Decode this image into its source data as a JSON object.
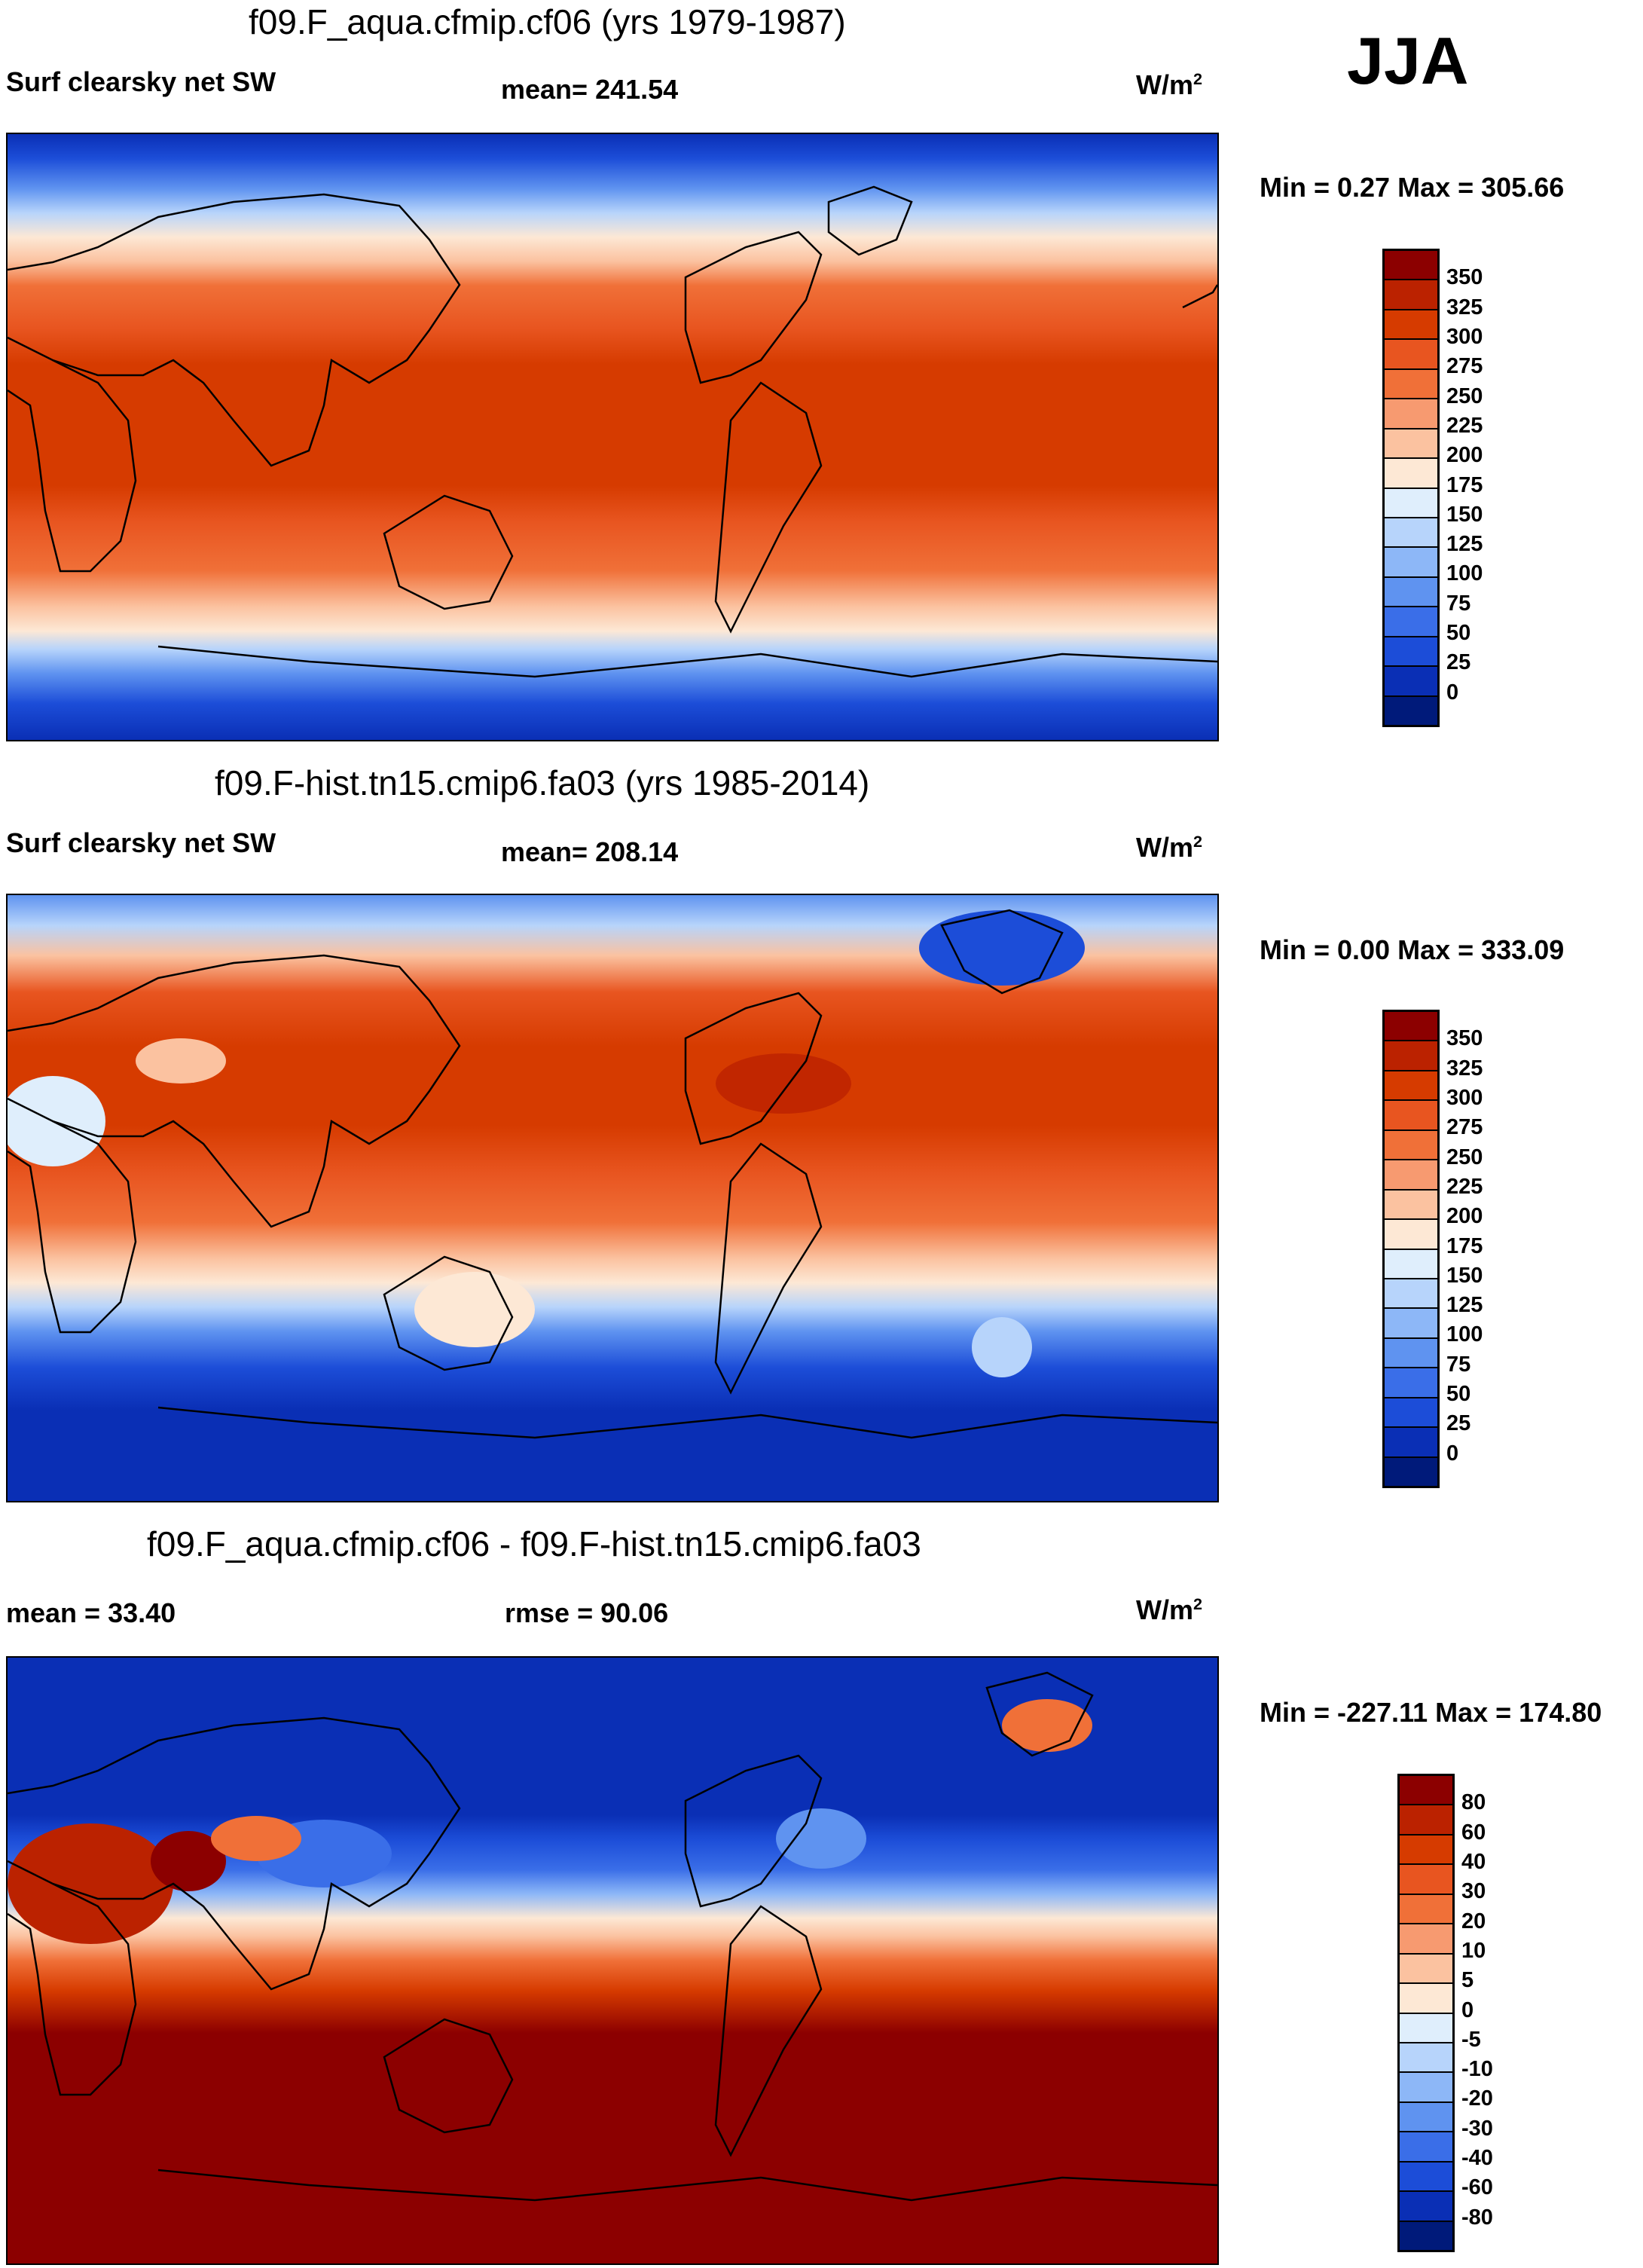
{
  "season": "JJA",
  "units_base": "W/m",
  "units_exp": "2",
  "panels": [
    {
      "title": "f09.F_aqua.cfmip.cf06 (yrs 1979-1987)",
      "left_label": "Surf clearsky net SW",
      "mid_label": "mean= 241.54",
      "minmax": "Min =   0.27 Max = 305.66",
      "colorbar": {
        "labels": [
          "350",
          "325",
          "300",
          "275",
          "250",
          "225",
          "200",
          "175",
          "150",
          "125",
          "100",
          "75",
          "50",
          "25",
          "0"
        ],
        "colors": [
          "#8c0000",
          "#bb2200",
          "#d63b00",
          "#e85520",
          "#f07038",
          "#f79a70",
          "#fbc2a0",
          "#fde8d5",
          "#dfeefc",
          "#b7d4fb",
          "#8db7f7",
          "#5f93f0",
          "#3a6ee8",
          "#1c4dd8",
          "#0a2fb5",
          "#001a7a"
        ]
      }
    },
    {
      "title": "f09.F-hist.tn15.cmip6.fa03 (yrs 1985-2014)",
      "left_label": "Surf clearsky net SW",
      "mid_label": "mean= 208.14",
      "minmax": "Min =   0.00 Max = 333.09",
      "colorbar": {
        "labels": [
          "350",
          "325",
          "300",
          "275",
          "250",
          "225",
          "200",
          "175",
          "150",
          "125",
          "100",
          "75",
          "50",
          "25",
          "0"
        ],
        "colors": [
          "#8c0000",
          "#bb2200",
          "#d63b00",
          "#e85520",
          "#f07038",
          "#f79a70",
          "#fbc2a0",
          "#fde8d5",
          "#dfeefc",
          "#b7d4fb",
          "#8db7f7",
          "#5f93f0",
          "#3a6ee8",
          "#1c4dd8",
          "#0a2fb5",
          "#001a7a"
        ]
      }
    },
    {
      "title": "f09.F_aqua.cfmip.cf06 - f09.F-hist.tn15.cmip6.fa03",
      "left_label": "mean =  33.40",
      "mid_label": "rmse =  90.06",
      "minmax": "Min = -227.11 Max = 174.80",
      "colorbar": {
        "labels": [
          "80",
          "60",
          "40",
          "30",
          "20",
          "10",
          "5",
          "0",
          "-5",
          "-10",
          "-20",
          "-30",
          "-40",
          "-60",
          "-80"
        ],
        "colors": [
          "#8c0000",
          "#bb2200",
          "#d63b00",
          "#e85520",
          "#f07038",
          "#f79a70",
          "#fbc2a0",
          "#fde8d5",
          "#dfeefc",
          "#b7d4fb",
          "#8db7f7",
          "#5f93f0",
          "#3a6ee8",
          "#1c4dd8",
          "#0a2fb5",
          "#001a7a"
        ]
      }
    }
  ]
}
